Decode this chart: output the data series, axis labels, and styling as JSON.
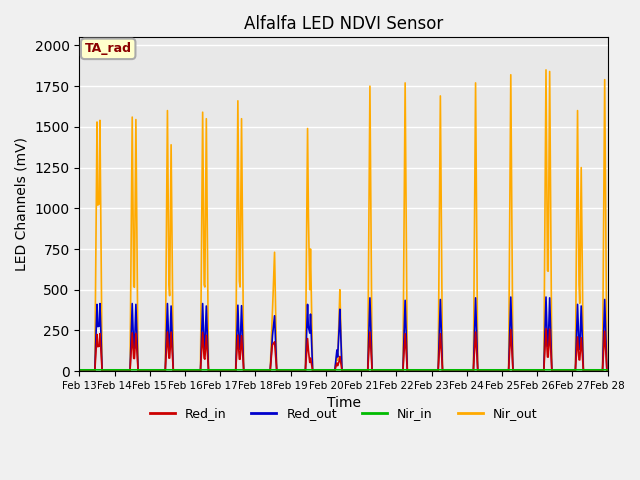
{
  "title": "Alfalfa LED NDVI Sensor",
  "ylabel": "LED Channels (mV)",
  "xlabel": "Time",
  "legend_label": "TA_rad",
  "ylim": [
    0,
    2050
  ],
  "background_color": "#e8e8e8",
  "grid_color": "#ffffff",
  "series": {
    "Red_in": {
      "color": "#cc0000",
      "lw": 1.2
    },
    "Red_out": {
      "color": "#0000cc",
      "lw": 1.2
    },
    "Nir_in": {
      "color": "#00bb00",
      "lw": 1.2
    },
    "Nir_out": {
      "color": "#ffaa00",
      "lw": 1.2
    }
  },
  "spike_params": [
    [
      12.0,
      1530,
      410,
      225,
      1.5
    ],
    [
      14.0,
      1540,
      415,
      230,
      1.5
    ],
    [
      36.0,
      1560,
      415,
      235,
      1.5
    ],
    [
      38.5,
      1545,
      410,
      232,
      1.5
    ],
    [
      60.0,
      1600,
      415,
      240,
      1.5
    ],
    [
      62.5,
      1390,
      400,
      240,
      1.5
    ],
    [
      84.0,
      1590,
      415,
      238,
      1.5
    ],
    [
      86.5,
      1550,
      400,
      220,
      1.5
    ],
    [
      108.0,
      1660,
      405,
      222,
      1.5
    ],
    [
      110.5,
      1550,
      402,
      218,
      1.5
    ],
    [
      131.5,
      340,
      210,
      160,
      1.5
    ],
    [
      133.0,
      730,
      340,
      180,
      1.5
    ],
    [
      155.5,
      1490,
      410,
      200,
      1.5
    ],
    [
      157.5,
      750,
      350,
      80,
      1.5
    ],
    [
      175.5,
      100,
      130,
      50,
      1.5
    ],
    [
      177.5,
      500,
      380,
      90,
      1.5
    ],
    [
      198.0,
      1750,
      450,
      240,
      1.5
    ],
    [
      222.0,
      1770,
      435,
      230,
      1.5
    ],
    [
      246.0,
      1690,
      440,
      230,
      1.5
    ],
    [
      270.0,
      1770,
      450,
      240,
      1.5
    ],
    [
      294.0,
      1820,
      455,
      255,
      1.5
    ],
    [
      318.0,
      1850,
      455,
      260,
      1.5
    ],
    [
      320.5,
      1840,
      450,
      258,
      1.5
    ],
    [
      339.5,
      1600,
      410,
      210,
      1.5
    ],
    [
      342.0,
      1250,
      400,
      205,
      1.5
    ],
    [
      358.0,
      1790,
      440,
      245,
      1.5
    ]
  ],
  "nir_in_level": 8
}
